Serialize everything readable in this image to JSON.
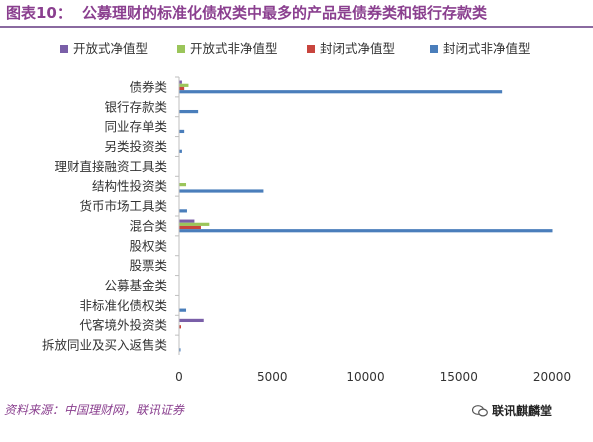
{
  "header": {
    "figure_number": "图表10：",
    "title": "公募理财的标准化债权类中最多的产品是债券类和银行存款类"
  },
  "footer": {
    "source": "资料来源：中国理财网，联讯证券",
    "watermark": "联讯麒麟堂"
  },
  "chart_data": {
    "type": "bar",
    "orientation": "horizontal",
    "title": "",
    "xlabel": "",
    "ylabel": "",
    "xlim": [
      0,
      20000
    ],
    "xticks": [
      0,
      5000,
      10000,
      15000,
      20000
    ],
    "grid": false,
    "legend_position": "top",
    "categories": [
      "债券类",
      "银行存款类",
      "同业存单类",
      "另类投资类",
      "理财直接融资工具类",
      "结构性投资类",
      "货币市场工具类",
      "混合类",
      "股权类",
      "股票类",
      "公募基金类",
      "非标准化债权类",
      "代客境外投资类",
      "拆放同业及买入返售类"
    ],
    "series": [
      {
        "name": "开放式净值型",
        "color": "#7a5fa8",
        "values": [
          130,
          0,
          0,
          0,
          0,
          0,
          0,
          800,
          0,
          0,
          0,
          0,
          1300,
          0
        ]
      },
      {
        "name": "开放式非净值型",
        "color": "#9bc55a",
        "values": [
          480,
          0,
          0,
          0,
          0,
          350,
          0,
          1600,
          0,
          0,
          0,
          0,
          0,
          0
        ]
      },
      {
        "name": "封闭式净值型",
        "color": "#c8453d",
        "values": [
          250,
          0,
          0,
          0,
          0,
          0,
          0,
          1150,
          0,
          0,
          0,
          0,
          80,
          0
        ]
      },
      {
        "name": "封闭式非净值型",
        "color": "#4a7ebb",
        "values": [
          17300,
          1000,
          250,
          130,
          0,
          4500,
          400,
          20000,
          0,
          0,
          0,
          350,
          0,
          30
        ]
      }
    ]
  }
}
